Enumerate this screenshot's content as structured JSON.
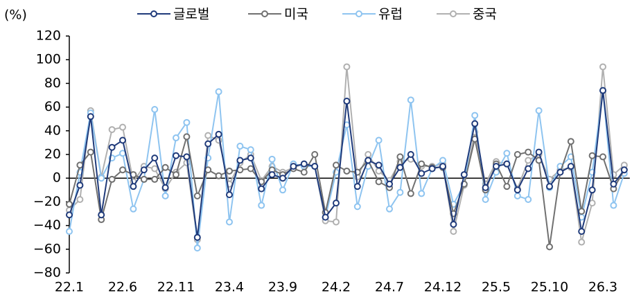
{
  "chart_data": {
    "type": "line",
    "unit_label": "(%)",
    "categories": [
      "22.1",
      null,
      null,
      null,
      null,
      "22.6",
      null,
      null,
      null,
      null,
      "22.11",
      null,
      null,
      null,
      null,
      "23.4",
      null,
      null,
      null,
      null,
      "23.9",
      null,
      null,
      null,
      null,
      "24.2",
      null,
      null,
      null,
      null,
      "24.7",
      null,
      null,
      null,
      null,
      "24.12",
      null,
      null,
      null,
      null,
      "25.5",
      null,
      null,
      null,
      null,
      "25.10",
      null,
      null,
      null,
      null,
      "26.3",
      null,
      null
    ],
    "series": [
      {
        "name": "글로벌",
        "color": "#1f3a7a",
        "values": [
          -31,
          -6,
          52,
          -31,
          26,
          32,
          -7,
          7,
          17,
          -8,
          19,
          18,
          -50,
          29,
          37,
          -14,
          15,
          17,
          -9,
          3,
          0,
          10,
          12,
          10,
          -33,
          -21,
          65,
          -7,
          15,
          11,
          -5,
          9,
          20,
          4,
          8,
          10,
          -39,
          3,
          46,
          -8,
          10,
          12,
          -10,
          8,
          22,
          -7,
          5,
          10,
          -45,
          -10,
          74,
          -5,
          7
        ]
      },
      {
        "name": "미국",
        "color": "#707070",
        "values": [
          -22,
          11,
          22,
          -35,
          -1,
          7,
          3,
          -1,
          -1,
          9,
          3,
          35,
          -15,
          7,
          2,
          6,
          7,
          8,
          -3,
          7,
          3,
          8,
          5,
          20,
          -29,
          11,
          6,
          5,
          15,
          -3,
          -8,
          18,
          -13,
          12,
          9,
          9,
          -30,
          -5,
          33,
          -10,
          12,
          -7,
          20,
          22,
          15,
          -58,
          5,
          31,
          -28,
          19,
          18,
          -9,
          7
        ]
      },
      {
        "name": "유럽",
        "color": "#8ec4f0",
        "values": [
          -45,
          5,
          55,
          0,
          17,
          21,
          -26,
          -1,
          58,
          -15,
          34,
          47,
          -59,
          17,
          73,
          -37,
          27,
          24,
          -23,
          16,
          -10,
          12,
          10,
          10,
          -33,
          5,
          45,
          -24,
          10,
          32,
          -26,
          -12,
          66,
          -13,
          8,
          15,
          -22,
          -5,
          53,
          -18,
          5,
          21,
          -15,
          -18,
          57,
          -8,
          10,
          18,
          -33,
          5,
          74,
          -23,
          4
        ]
      },
      {
        "name": "중국",
        "color": "#b0b0b0",
        "values": [
          -27,
          -18,
          57,
          1,
          41,
          43,
          -3,
          10,
          8,
          -9,
          5,
          13,
          -52,
          36,
          32,
          -5,
          13,
          20,
          -2,
          10,
          5,
          9,
          12,
          10,
          -36,
          -37,
          94,
          1,
          20,
          6,
          -2,
          14,
          16,
          10,
          10,
          12,
          -45,
          -6,
          39,
          -5,
          14,
          12,
          -9,
          15,
          20,
          -1,
          7,
          9,
          -54,
          -21,
          94,
          3,
          11
        ]
      }
    ],
    "ylim": [
      -80,
      120
    ],
    "yticks": [
      {
        "value": -80,
        "label": "−80"
      },
      {
        "value": -60,
        "label": "−60"
      },
      {
        "value": -40,
        "label": "−40"
      },
      {
        "value": -20,
        "label": "−20"
      },
      0,
      20,
      40,
      60,
      80,
      100,
      120
    ],
    "grid": false
  }
}
